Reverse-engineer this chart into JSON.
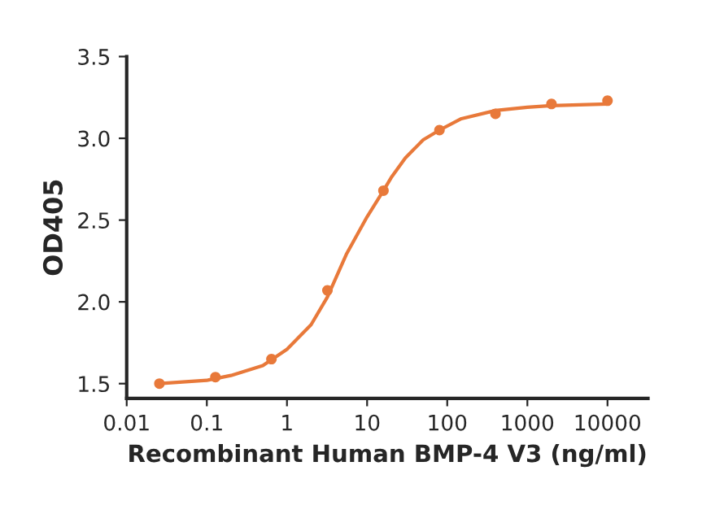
{
  "chart_data": {
    "type": "scatter",
    "xlabel": "Recombinant Human BMP-4 V3 (ng/ml)",
    "ylabel": "OD405",
    "log": "x",
    "xlim": [
      0.01,
      32000
    ],
    "ylim": [
      1.41,
      3.5
    ],
    "xticks": [
      0.01,
      0.1,
      1,
      10,
      100,
      1000,
      10000
    ],
    "yticks": [
      {
        "value": 1.5,
        "label": "1.5"
      },
      {
        "value": 2.0,
        "label": "2.0"
      },
      {
        "value": 2.5,
        "label": "2.5"
      },
      {
        "value": 3.0,
        "label": "3.0"
      },
      {
        "value": 3.5,
        "label": "3.5"
      }
    ],
    "grid": false,
    "series": [
      {
        "marker": "circle",
        "color": "#e8793a",
        "x": [
          0.0256,
          0.128,
          0.64,
          3.2,
          16,
          80,
          400,
          2000,
          10000
        ],
        "values": [
          1.5,
          1.54,
          1.65,
          2.07,
          2.68,
          3.05,
          3.15,
          3.21,
          3.23
        ]
      },
      {
        "type": "line",
        "marker": "none",
        "color": "#e8793a",
        "x": [
          0.0256,
          0.05,
          0.1,
          0.2,
          0.5,
          1,
          2,
          3.2,
          5.5,
          10,
          16,
          20,
          30,
          50,
          80,
          150,
          400,
          1000,
          2000,
          10000
        ],
        "values": [
          1.5,
          1.51,
          1.52,
          1.55,
          1.61,
          1.71,
          1.86,
          2.03,
          2.29,
          2.52,
          2.68,
          2.76,
          2.88,
          2.99,
          3.05,
          3.12,
          3.17,
          3.19,
          3.2,
          3.21
        ]
      }
    ]
  }
}
